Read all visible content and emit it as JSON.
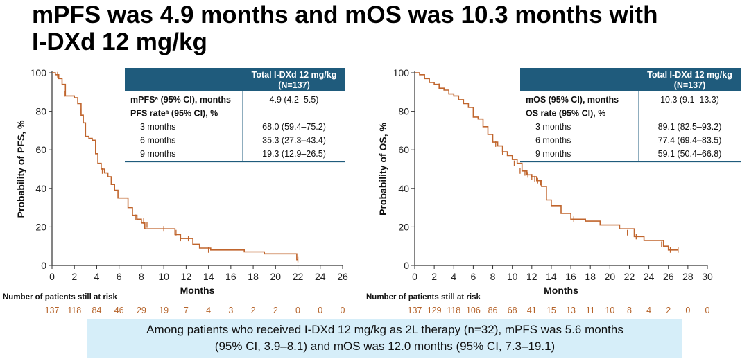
{
  "title_line1": "mPFS was 4.9 months and mOS was 10.3 months with",
  "title_line2": "I-DXd 12 mg/kg",
  "banner": {
    "line1": "Among patients who received I-DXd 12 mg/kg as 2L therapy (n=32), mPFS was 5.6 months",
    "line2": "(95% CI, 3.9–8.1) and mOS was 12.0 months (95% CI, 7.3–19.1)"
  },
  "colors": {
    "curve": "#c0652d",
    "header": "#1f5b7c",
    "risk": "#b5632a",
    "banner": "#d6eef9"
  },
  "chart_data": [
    {
      "type": "line",
      "ylabel": "Probability of PFS, %",
      "xlabel": "Months",
      "ylim": [
        0,
        100
      ],
      "xlim": [
        0,
        26
      ],
      "yticks": [
        "0",
        "20",
        "40",
        "60",
        "80",
        "100"
      ],
      "xticks": [
        "0",
        "2",
        "4",
        "6",
        "8",
        "10",
        "12",
        "14",
        "16",
        "18",
        "20",
        "22",
        "24",
        "26"
      ],
      "series": [
        {
          "x": [
            0,
            0.3,
            0.6,
            0.9,
            1.2,
            1.6,
            2.0,
            2.3,
            2.6,
            2.8,
            3.0,
            3.3,
            3.6,
            3.9,
            4.1,
            4.4,
            4.7,
            5.0,
            5.3,
            5.6,
            5.9,
            6.3,
            6.8,
            7.2,
            7.6,
            8.0,
            8.3,
            9.0,
            10.2,
            11.0,
            11.5,
            12.0,
            12.6,
            13.2,
            14.2,
            16.0,
            17.2,
            19.0,
            20.5,
            21.5,
            21.9,
            22.0
          ],
          "y": [
            100,
            99,
            97,
            94,
            88,
            88,
            87,
            84,
            78,
            74,
            67,
            66,
            65,
            58,
            53,
            50,
            48,
            46,
            42,
            39,
            35,
            35,
            30,
            26,
            24,
            22,
            19,
            19,
            19,
            16,
            14,
            14,
            11,
            9,
            8,
            8,
            7,
            6,
            6,
            6,
            3,
            3
          ]
        }
      ],
      "censor_marks": [
        [
          0.5,
          99
        ],
        [
          1.1,
          89
        ],
        [
          2.6,
          80
        ],
        [
          4.5,
          49
        ],
        [
          7.5,
          25
        ],
        [
          8.2,
          23
        ],
        [
          8.5,
          21
        ],
        [
          10.0,
          19
        ],
        [
          11.1,
          17
        ],
        [
          11.5,
          14
        ],
        [
          12.2,
          14
        ],
        [
          14.0,
          8
        ],
        [
          22.0,
          3
        ]
      ],
      "risk_table": {
        "label": "Number of patients still at risk",
        "values": [
          "137",
          "118",
          "84",
          "46",
          "29",
          "19",
          "7",
          "4",
          "3",
          "2",
          "2",
          "0",
          "0",
          "0"
        ]
      },
      "table": {
        "header": "Total I-DXd 12 mg/kg",
        "header_n": "(N=137)",
        "rows": [
          {
            "label": "mPFSᵃ (95% CI), months",
            "value": "4.9 (4.2–5.5)",
            "bold": true,
            "indent": false
          },
          {
            "label": "PFS rateᵃ (95% CI), %",
            "value": "",
            "bold": true,
            "indent": false
          },
          {
            "label": "3 months",
            "value": "68.0 (59.4–75.2)",
            "bold": false,
            "indent": true
          },
          {
            "label": "6 months",
            "value": "35.3 (27.3–43.4)",
            "bold": false,
            "indent": true
          },
          {
            "label": "9 months",
            "value": "19.3 (12.9–26.5)",
            "bold": false,
            "indent": true
          }
        ]
      }
    },
    {
      "type": "line",
      "ylabel": "Probability of OS, %",
      "xlabel": "Months",
      "ylim": [
        0,
        100
      ],
      "xlim": [
        0,
        30
      ],
      "yticks": [
        "0",
        "20",
        "40",
        "60",
        "80",
        "100"
      ],
      "xticks": [
        "0",
        "2",
        "4",
        "6",
        "8",
        "10",
        "12",
        "14",
        "16",
        "18",
        "20",
        "22",
        "24",
        "26",
        "28",
        "30"
      ],
      "series": [
        {
          "x": [
            0,
            0.5,
            1.0,
            1.5,
            2.0,
            2.5,
            3.0,
            3.5,
            4.0,
            4.5,
            5.0,
            5.5,
            6.0,
            6.5,
            7.0,
            7.5,
            8.0,
            8.5,
            9.0,
            9.5,
            10.0,
            10.5,
            11.0,
            11.5,
            12.0,
            12.5,
            13.0,
            13.5,
            14.0,
            15.0,
            16.0,
            17.5,
            19.0,
            21.0,
            22.5,
            23.5,
            25.5,
            26.0,
            27.0
          ],
          "y": [
            100,
            99,
            97,
            95,
            94,
            92,
            91,
            89,
            88,
            86,
            84,
            82,
            77,
            76,
            72,
            68,
            64,
            62,
            59,
            57,
            55,
            53,
            49,
            47,
            46,
            44,
            41,
            34,
            31,
            27,
            24,
            23,
            21,
            19,
            15,
            13,
            10,
            8,
            8
          ]
        }
      ],
      "censor_marks": [
        [
          2.5,
          93
        ],
        [
          8.3,
          63
        ],
        [
          9.0,
          59
        ],
        [
          10.2,
          53
        ],
        [
          10.8,
          49
        ],
        [
          11.3,
          48
        ],
        [
          11.6,
          47
        ],
        [
          12.0,
          46
        ],
        [
          12.3,
          45
        ],
        [
          12.6,
          44
        ],
        [
          12.9,
          43
        ],
        [
          16.3,
          24
        ],
        [
          21.8,
          17
        ],
        [
          22.7,
          15
        ],
        [
          25.3,
          11
        ],
        [
          26.2,
          8
        ],
        [
          27.0,
          8
        ]
      ],
      "risk_table": {
        "label": "Number of patients still at risk",
        "values": [
          "137",
          "129",
          "118",
          "106",
          "86",
          "68",
          "41",
          "15",
          "13",
          "11",
          "10",
          "8",
          "4",
          "2",
          "0",
          "0"
        ]
      },
      "table": {
        "header": "Total I-DXd 12 mg/kg",
        "header_n": "(N=137)",
        "rows": [
          {
            "label": "mOS (95% CI), months",
            "value": "10.3 (9.1–13.3)",
            "bold": true,
            "indent": false
          },
          {
            "label": "OS rate (95% CI), %",
            "value": "",
            "bold": true,
            "indent": false
          },
          {
            "label": "3 months",
            "value": "89.1 (82.5–93.2)",
            "bold": false,
            "indent": true
          },
          {
            "label": "6 months",
            "value": "77.4 (69.4–83.5)",
            "bold": false,
            "indent": true
          },
          {
            "label": "9 months",
            "value": "59.1 (50.4–66.8)",
            "bold": false,
            "indent": true
          }
        ]
      }
    }
  ]
}
